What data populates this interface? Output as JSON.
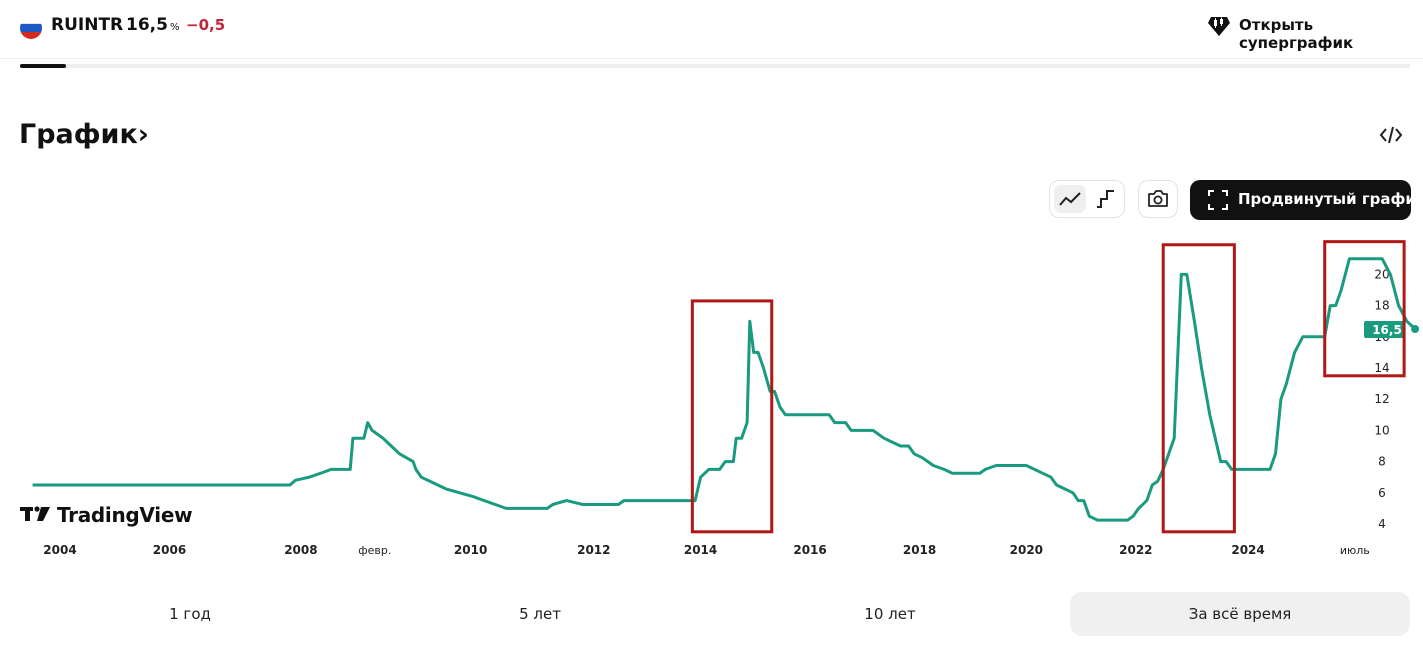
{
  "header": {
    "ticker": "RUINTR",
    "value": "16,5",
    "unit": "%",
    "change": "−0,5",
    "supergraph_label": "Открыть суперграфик"
  },
  "section": {
    "title": "График›"
  },
  "toolbar": {
    "advanced_label": "Продвинутый график"
  },
  "brand": {
    "name": "TradingView"
  },
  "periods": [
    {
      "label": "1 год",
      "active": false
    },
    {
      "label": "5 лет",
      "active": false
    },
    {
      "label": "10 лет",
      "active": false
    },
    {
      "label": "За всё время",
      "active": true
    }
  ],
  "colors": {
    "line": "#1a9a7e",
    "accent": "#c2263a",
    "annotation_box": "#b01818"
  },
  "chart_data": {
    "type": "line",
    "x_tick_labels": [
      "2004",
      "2006",
      "2008",
      "февр.",
      "2010",
      "2012",
      "2014",
      "2016",
      "2018",
      "2020",
      "2022",
      "2024",
      "июль"
    ],
    "y_ticks": [
      4,
      6,
      8,
      10,
      12,
      14,
      16,
      18,
      20
    ],
    "ylim": [
      3,
      22
    ],
    "last_value_label": "16,5",
    "series": [
      {
        "points": [
          [
            2003.5,
            6.5
          ],
          [
            2008.2,
            6.5
          ],
          [
            2008.3,
            6.8
          ],
          [
            2008.55,
            7.0
          ],
          [
            2008.8,
            7.3
          ],
          [
            2008.95,
            7.5
          ],
          [
            2009.05,
            7.5
          ],
          [
            2009.3,
            7.5
          ],
          [
            2009.35,
            9.5
          ],
          [
            2009.55,
            9.5
          ],
          [
            2009.62,
            10.5
          ],
          [
            2009.7,
            10.0
          ],
          [
            2009.9,
            9.5
          ],
          [
            2010.05,
            9.0
          ],
          [
            2010.2,
            8.5
          ],
          [
            2010.45,
            8.0
          ],
          [
            2010.5,
            7.5
          ],
          [
            2010.6,
            7.0
          ],
          [
            2010.75,
            6.75
          ],
          [
            2010.9,
            6.5
          ],
          [
            2011.05,
            6.25
          ],
          [
            2011.3,
            6.0
          ],
          [
            2011.55,
            5.75
          ],
          [
            2011.75,
            5.5
          ],
          [
            2011.95,
            5.25
          ],
          [
            2012.15,
            5.0
          ],
          [
            2012.9,
            5.0
          ],
          [
            2013.0,
            5.25
          ],
          [
            2013.25,
            5.5
          ],
          [
            2013.55,
            5.25
          ],
          [
            2014.2,
            5.25
          ],
          [
            2014.3,
            5.5
          ],
          [
            2015.6,
            5.5
          ],
          [
            2015.7,
            7.0
          ],
          [
            2015.85,
            7.5
          ],
          [
            2016.05,
            7.5
          ],
          [
            2016.15,
            8.0
          ],
          [
            2016.3,
            8.0
          ],
          [
            2016.35,
            9.5
          ],
          [
            2016.45,
            9.5
          ],
          [
            2016.55,
            10.5
          ],
          [
            2016.6,
            17.0
          ],
          [
            2016.67,
            15.0
          ],
          [
            2016.75,
            15.0
          ],
          [
            2016.85,
            14.0
          ],
          [
            2016.97,
            12.5
          ],
          [
            2017.05,
            12.5
          ],
          [
            2017.15,
            11.5
          ],
          [
            2017.25,
            11.0
          ],
          [
            2018.05,
            11.0
          ],
          [
            2018.15,
            10.5
          ],
          [
            2018.35,
            10.5
          ],
          [
            2018.45,
            10.0
          ],
          [
            2018.85,
            10.0
          ],
          [
            2019.05,
            9.5
          ],
          [
            2019.2,
            9.25
          ],
          [
            2019.35,
            9.0
          ],
          [
            2019.5,
            9.0
          ],
          [
            2019.6,
            8.5
          ],
          [
            2019.75,
            8.25
          ],
          [
            2019.85,
            8.0
          ],
          [
            2019.95,
            7.75
          ],
          [
            2020.15,
            7.5
          ],
          [
            2020.3,
            7.25
          ],
          [
            2020.8,
            7.25
          ],
          [
            2020.9,
            7.5
          ],
          [
            2021.1,
            7.75
          ],
          [
            2021.65,
            7.75
          ],
          [
            2021.8,
            7.5
          ],
          [
            2021.95,
            7.25
          ],
          [
            2022.1,
            7.0
          ],
          [
            2022.2,
            6.5
          ],
          [
            2022.35,
            6.25
          ],
          [
            2022.5,
            6.0
          ],
          [
            2022.6,
            5.5
          ],
          [
            2022.7,
            5.5
          ],
          [
            2022.8,
            4.5
          ],
          [
            2022.95,
            4.25
          ],
          [
            2023.5,
            4.25
          ],
          [
            2023.6,
            4.5
          ],
          [
            2023.7,
            5.0
          ],
          [
            2023.85,
            5.5
          ],
          [
            2023.95,
            6.5
          ],
          [
            2024.05,
            6.75
          ],
          [
            2024.15,
            7.5
          ],
          [
            2024.25,
            8.5
          ],
          [
            2024.35,
            9.5
          ],
          [
            2024.48,
            20.0
          ],
          [
            2024.58,
            20.0
          ],
          [
            2024.72,
            17.0
          ],
          [
            2024.85,
            14.0
          ],
          [
            2025.0,
            11.0
          ],
          [
            2025.2,
            8.0
          ],
          [
            2025.3,
            8.0
          ],
          [
            2025.4,
            7.5
          ],
          [
            2026.1,
            7.5
          ],
          [
            2026.2,
            8.5
          ],
          [
            2026.3,
            12.0
          ],
          [
            2026.4,
            13.0
          ],
          [
            2026.55,
            15.0
          ],
          [
            2026.7,
            16.0
          ],
          [
            2027.1,
            16.0
          ],
          [
            2027.2,
            18.0
          ],
          [
            2027.3,
            18.0
          ],
          [
            2027.4,
            19.0
          ],
          [
            2027.55,
            21.0
          ],
          [
            2028.15,
            21.0
          ],
          [
            2028.3,
            20.0
          ],
          [
            2028.45,
            18.0
          ],
          [
            2028.6,
            17.0
          ],
          [
            2028.75,
            16.5
          ]
        ]
      }
    ],
    "annotation_boxes": [
      {
        "x_range": [
          2015.55,
          2017.0
        ],
        "y_range": [
          3.5,
          18.3
        ]
      },
      {
        "x_range": [
          2024.15,
          2025.45
        ],
        "y_range": [
          3.5,
          21.9
        ]
      },
      {
        "x_range": [
          2027.1,
          2028.55
        ],
        "y_range": [
          13.5,
          22.1
        ]
      }
    ]
  }
}
